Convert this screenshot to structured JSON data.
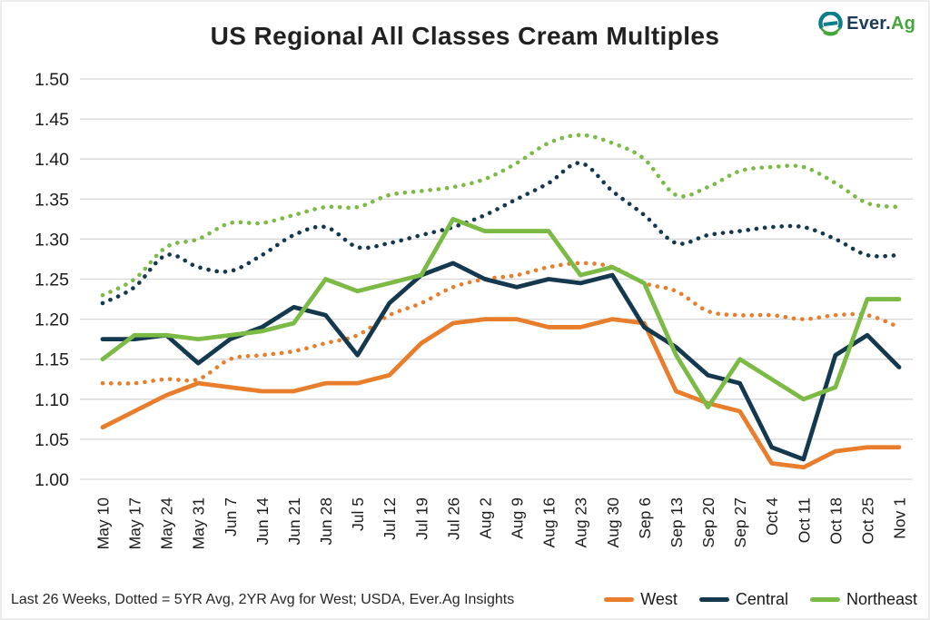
{
  "meta": {
    "title": "US Regional All Classes Cream Multiples"
  },
  "logo": {
    "primary": "Ever.",
    "accent": "Ag",
    "icon_teal": "#0C7C8A",
    "icon_green": "#44A63C"
  },
  "footnote": "Last 26 Weeks, Dotted = 5YR Avg, 2YR Avg for West; USDA, Ever.Ag Insights",
  "legend": [
    {
      "label": "West",
      "color": "#E87E2C"
    },
    {
      "label": "Central",
      "color": "#14384E"
    },
    {
      "label": "Northeast",
      "color": "#7CBA46"
    }
  ],
  "colors": {
    "grid": "#D6D6D6",
    "axis_text": "#1c1c1c"
  },
  "chart_data": {
    "type": "line",
    "title": "US Regional All Classes Cream Multiples",
    "xlabel": "",
    "ylabel": "",
    "ylim": [
      1.0,
      1.5
    ],
    "ytick_step": 0.05,
    "yticks": [
      "1.50",
      "1.45",
      "1.40",
      "1.35",
      "1.30",
      "1.25",
      "1.20",
      "1.15",
      "1.10",
      "1.05",
      "1.00"
    ],
    "grid": "horizontal",
    "legend_position": "bottom-right",
    "categories": [
      "May 10",
      "May 17",
      "May 24",
      "May 31",
      "Jun 7",
      "Jun 14",
      "Jun 21",
      "Jun 28",
      "Jul 5",
      "Jul 12",
      "Jul 19",
      "Jul 26",
      "Aug 2",
      "Aug 9",
      "Aug 16",
      "Aug 23",
      "Aug 30",
      "Sep 6",
      "Sep 13",
      "Sep 20",
      "Sep 27",
      "Oct 4",
      "Oct 11",
      "Oct 18",
      "Oct 25",
      "Nov 1"
    ],
    "series": [
      {
        "name": "West 2YR Avg",
        "style": "dotted",
        "color": "#E87E2C",
        "values": [
          1.12,
          1.12,
          1.125,
          1.125,
          1.15,
          1.155,
          1.16,
          1.17,
          1.18,
          1.205,
          1.22,
          1.24,
          1.25,
          1.255,
          1.265,
          1.27,
          1.265,
          1.245,
          1.235,
          1.21,
          1.205,
          1.205,
          1.2,
          1.205,
          1.205,
          1.19
        ]
      },
      {
        "name": "Central 5YR Avg",
        "style": "dotted",
        "color": "#14384E",
        "values": [
          1.22,
          1.24,
          1.28,
          1.265,
          1.26,
          1.28,
          1.305,
          1.315,
          1.29,
          1.295,
          1.305,
          1.315,
          1.33,
          1.35,
          1.37,
          1.395,
          1.36,
          1.33,
          1.295,
          1.305,
          1.31,
          1.315,
          1.315,
          1.3,
          1.28,
          1.28
        ]
      },
      {
        "name": "Northeast 5YR Avg",
        "style": "dotted",
        "color": "#7CBA46",
        "values": [
          1.23,
          1.25,
          1.29,
          1.3,
          1.32,
          1.32,
          1.33,
          1.34,
          1.34,
          1.355,
          1.36,
          1.365,
          1.375,
          1.395,
          1.42,
          1.43,
          1.42,
          1.4,
          1.355,
          1.365,
          1.385,
          1.39,
          1.39,
          1.37,
          1.345,
          1.34
        ]
      },
      {
        "name": "West",
        "style": "solid",
        "color": "#E87E2C",
        "values": [
          1.065,
          1.085,
          1.105,
          1.12,
          1.115,
          1.11,
          1.11,
          1.12,
          1.12,
          1.13,
          1.17,
          1.195,
          1.2,
          1.2,
          1.19,
          1.19,
          1.2,
          1.195,
          1.11,
          1.095,
          1.085,
          1.02,
          1.015,
          1.035,
          1.04,
          1.04
        ]
      },
      {
        "name": "Central",
        "style": "solid",
        "color": "#14384E",
        "values": [
          1.175,
          1.175,
          1.18,
          1.145,
          1.175,
          1.19,
          1.215,
          1.205,
          1.155,
          1.22,
          1.255,
          1.27,
          1.25,
          1.24,
          1.25,
          1.245,
          1.255,
          1.19,
          1.165,
          1.13,
          1.12,
          1.04,
          1.025,
          1.155,
          1.18,
          1.14
        ]
      },
      {
        "name": "Northeast",
        "style": "solid",
        "color": "#7CBA46",
        "values": [
          1.15,
          1.18,
          1.18,
          1.175,
          1.18,
          1.185,
          1.195,
          1.25,
          1.235,
          1.245,
          1.255,
          1.325,
          1.31,
          1.31,
          1.31,
          1.255,
          1.265,
          1.245,
          1.155,
          1.09,
          1.15,
          1.125,
          1.1,
          1.115,
          1.225,
          1.225
        ]
      }
    ]
  }
}
